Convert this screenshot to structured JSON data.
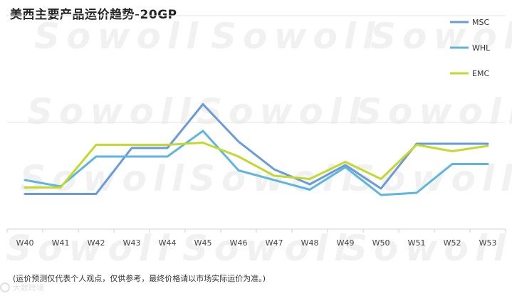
{
  "chart_data": {
    "type": "line",
    "title": "美西主要产品运价趋势-20GP",
    "categories": [
      "W40",
      "W41",
      "W42",
      "W43",
      "W44",
      "W45",
      "W46",
      "W47",
      "W48",
      "W49",
      "W50",
      "W51",
      "W52",
      "W53"
    ],
    "series": [
      {
        "name": "MSC",
        "color": "#6a9ad9",
        "values": [
          0.33,
          0.33,
          0.33,
          0.76,
          0.76,
          1.17,
          0.82,
          0.56,
          0.42,
          0.6,
          0.38,
          0.8,
          0.8,
          0.8
        ]
      },
      {
        "name": "WHL",
        "color": "#5fb6dc",
        "values": [
          0.46,
          0.4,
          0.68,
          0.68,
          0.68,
          0.92,
          0.55,
          0.46,
          0.37,
          0.58,
          0.32,
          0.34,
          0.61,
          0.61
        ]
      },
      {
        "name": "EMC",
        "color": "#c2d930",
        "values": [
          0.39,
          0.39,
          0.79,
          0.79,
          0.79,
          0.81,
          0.68,
          0.5,
          0.47,
          0.63,
          0.47,
          0.79,
          0.73,
          0.78
        ]
      }
    ],
    "ylim": [
      -0.02,
      2.0
    ],
    "grid": true,
    "legend_position": "top-right",
    "note": "(运价预测仅代表个人观点，仅供参考，最终价格请以市场实际运价为准。)"
  },
  "watermark": "Sowoll",
  "logo_text": "大数跨境"
}
